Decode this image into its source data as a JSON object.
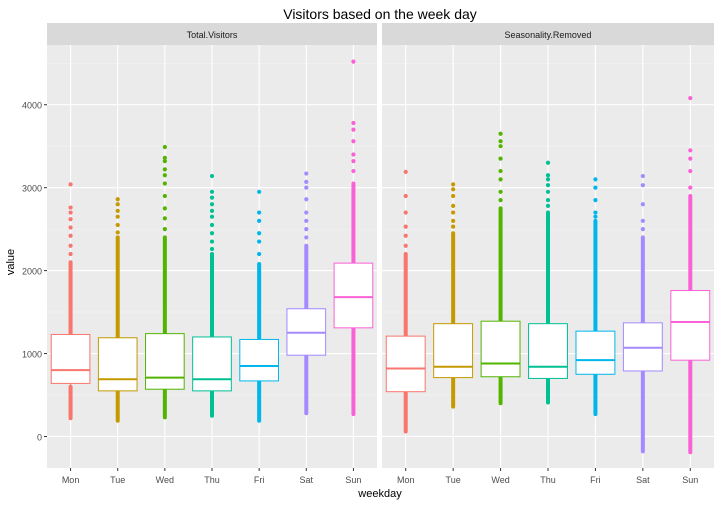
{
  "chart_data": {
    "type": "boxplot",
    "title": "Visitors based on the week day",
    "xlabel": "weekday",
    "ylabel": "value",
    "ylim": [
      -380,
      4720
    ],
    "yticks": [
      0,
      1000,
      2000,
      3000,
      4000
    ],
    "categories": [
      "Mon",
      "Tue",
      "Wed",
      "Thu",
      "Fri",
      "Sat",
      "Sun"
    ],
    "colors": [
      "#F8766D",
      "#C49A00",
      "#53B400",
      "#00C094",
      "#00B6EB",
      "#A58AFF",
      "#FB61D7"
    ],
    "grid": true,
    "legend": "none",
    "panels": [
      {
        "name": "Total.Visitors",
        "boxes": [
          {
            "q1": 640,
            "median": 800,
            "q3": 1230,
            "wlo": 250,
            "whi": 1610,
            "dense_lo": [
              220,
              600
            ],
            "dense_hi": [
              1230,
              2100
            ],
            "outliers": [
              2200,
              2300,
              2420,
              2520,
              2620,
              2700,
              2760,
              3040
            ]
          },
          {
            "q1": 550,
            "median": 690,
            "q3": 1190,
            "wlo": 200,
            "whi": 1600,
            "dense_lo": [
              190,
              550
            ],
            "dense_hi": [
              1190,
              2400
            ],
            "outliers": [
              2460,
              2550,
              2650,
              2720,
              2800,
              2860
            ]
          },
          {
            "q1": 570,
            "median": 710,
            "q3": 1240,
            "wlo": 240,
            "whi": 1640,
            "dense_lo": [
              230,
              570
            ],
            "dense_hi": [
              1240,
              2400
            ],
            "outliers": [
              2500,
              2630,
              2750,
              2900,
              3050,
              3150,
              3220,
              3320,
              3360,
              3490
            ]
          },
          {
            "q1": 550,
            "median": 690,
            "q3": 1200,
            "wlo": 260,
            "whi": 1600,
            "dense_lo": [
              250,
              550
            ],
            "dense_hi": [
              1200,
              2200
            ],
            "outliers": [
              2260,
              2350,
              2450,
              2550,
              2650,
              2720,
              2800,
              2880,
              2950,
              3140
            ]
          },
          {
            "q1": 670,
            "median": 850,
            "q3": 1170,
            "wlo": 200,
            "whi": 1530,
            "dense_lo": [
              190,
              670
            ],
            "dense_hi": [
              1170,
              2080
            ],
            "outliers": [
              2200,
              2350,
              2450,
              2600,
              2700,
              2950
            ]
          },
          {
            "q1": 980,
            "median": 1250,
            "q3": 1540,
            "wlo": 300,
            "whi": 1900,
            "dense_lo": [
              280,
              980
            ],
            "dense_hi": [
              1540,
              2300
            ],
            "outliers": [
              2400,
              2500,
              2600,
              2700,
              2860,
              3000,
              3070,
              3170
            ]
          },
          {
            "q1": 1310,
            "median": 1680,
            "q3": 2090,
            "wlo": 290,
            "whi": 2700,
            "dense_lo": [
              270,
              1310
            ],
            "dense_hi": [
              2090,
              3050
            ],
            "outliers": [
              3200,
              3320,
              3400,
              3560,
              3700,
              3780,
              4520
            ]
          }
        ]
      },
      {
        "name": "Seasonality.Removed",
        "boxes": [
          {
            "q1": 540,
            "median": 820,
            "q3": 1210,
            "wlo": 80,
            "whi": 1600,
            "dense_lo": [
              60,
              540
            ],
            "dense_hi": [
              1210,
              2200
            ],
            "outliers": [
              2300,
              2420,
              2530,
              2700,
              2900,
              3190
            ]
          },
          {
            "q1": 710,
            "median": 840,
            "q3": 1360,
            "wlo": 380,
            "whi": 1800,
            "dense_lo": [
              360,
              710
            ],
            "dense_hi": [
              1360,
              2450
            ],
            "outliers": [
              2530,
              2600,
              2700,
              2780,
              2900,
              2980,
              3040
            ]
          },
          {
            "q1": 720,
            "median": 880,
            "q3": 1390,
            "wlo": 420,
            "whi": 1900,
            "dense_lo": [
              400,
              720
            ],
            "dense_hi": [
              1390,
              2750
            ],
            "outliers": [
              2850,
              2950,
              3100,
              3200,
              3350,
              3500,
              3560,
              3650
            ]
          },
          {
            "q1": 700,
            "median": 840,
            "q3": 1360,
            "wlo": 430,
            "whi": 1800,
            "dense_lo": [
              410,
              700
            ],
            "dense_hi": [
              1360,
              2700
            ],
            "outliers": [
              2780,
              2850,
              2950,
              3030,
              3100,
              3150,
              3300
            ]
          },
          {
            "q1": 750,
            "median": 920,
            "q3": 1270,
            "wlo": 280,
            "whi": 1700,
            "dense_lo": [
              270,
              750
            ],
            "dense_hi": [
              1270,
              2600
            ],
            "outliers": [
              2650,
              2700,
              2850,
              3000,
              3100
            ]
          },
          {
            "q1": 790,
            "median": 1070,
            "q3": 1370,
            "wlo": 0,
            "whi": 1900,
            "dense_lo": [
              -180,
              790
            ],
            "dense_hi": [
              1370,
              2400
            ],
            "outliers": [
              2500,
              2600,
              2800,
              3030,
              3140
            ]
          },
          {
            "q1": 920,
            "median": 1380,
            "q3": 1760,
            "wlo": 0,
            "whi": 2400,
            "dense_lo": [
              -190,
              920
            ],
            "dense_hi": [
              1760,
              2900
            ],
            "outliers": [
              3000,
              3200,
              3350,
              3450,
              4080
            ]
          }
        ]
      }
    ]
  }
}
